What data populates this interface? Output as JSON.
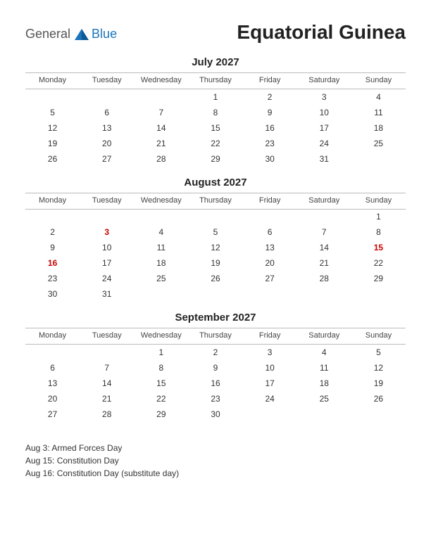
{
  "logo": {
    "general": "General",
    "blue": "Blue"
  },
  "title": "Equatorial Guinea",
  "day_headers": [
    "Monday",
    "Tuesday",
    "Wednesday",
    "Thursday",
    "Friday",
    "Saturday",
    "Sunday"
  ],
  "months": [
    {
      "title": "July 2027",
      "weeks": [
        [
          "",
          "",
          "",
          "1",
          "2",
          "3",
          "4"
        ],
        [
          "5",
          "6",
          "7",
          "8",
          "9",
          "10",
          "11"
        ],
        [
          "12",
          "13",
          "14",
          "15",
          "16",
          "17",
          "18"
        ],
        [
          "19",
          "20",
          "21",
          "22",
          "23",
          "24",
          "25"
        ],
        [
          "26",
          "27",
          "28",
          "29",
          "30",
          "31",
          ""
        ]
      ],
      "holidays": []
    },
    {
      "title": "August 2027",
      "weeks": [
        [
          "",
          "",
          "",
          "",
          "",
          "",
          "1"
        ],
        [
          "2",
          "3",
          "4",
          "5",
          "6",
          "7",
          "8"
        ],
        [
          "9",
          "10",
          "11",
          "12",
          "13",
          "14",
          "15"
        ],
        [
          "16",
          "17",
          "18",
          "19",
          "20",
          "21",
          "22"
        ],
        [
          "23",
          "24",
          "25",
          "26",
          "27",
          "28",
          "29"
        ],
        [
          "30",
          "31",
          "",
          "",
          "",
          "",
          ""
        ]
      ],
      "holidays": [
        "3",
        "15",
        "16"
      ]
    },
    {
      "title": "September 2027",
      "weeks": [
        [
          "",
          "",
          "1",
          "2",
          "3",
          "4",
          "5"
        ],
        [
          "6",
          "7",
          "8",
          "9",
          "10",
          "11",
          "12"
        ],
        [
          "13",
          "14",
          "15",
          "16",
          "17",
          "18",
          "19"
        ],
        [
          "20",
          "21",
          "22",
          "23",
          "24",
          "25",
          "26"
        ],
        [
          "27",
          "28",
          "29",
          "30",
          "",
          "",
          ""
        ]
      ],
      "holidays": []
    }
  ],
  "holiday_list": [
    "Aug 3: Armed Forces Day",
    "Aug 15: Constitution Day",
    "Aug 16: Constitution Day (substitute day)"
  ],
  "colors": {
    "holiday_text": "#cc0000",
    "text": "#333333",
    "logo_blue": "#1a75bc",
    "border": "#bbbbbb",
    "background": "#ffffff"
  }
}
